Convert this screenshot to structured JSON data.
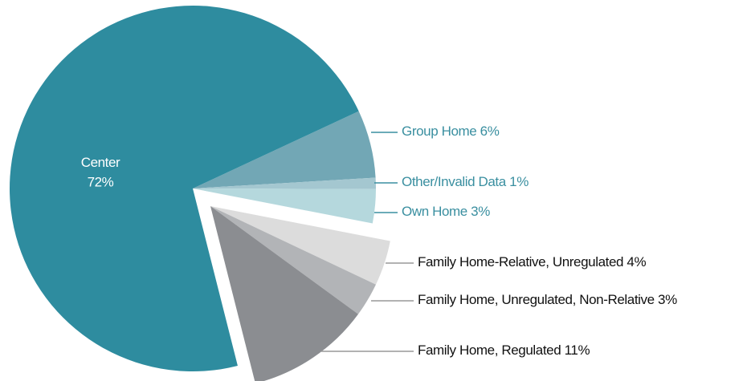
{
  "chart_data": {
    "type": "pie",
    "categories": [
      "Center",
      "Group Home",
      "Other/Invalid Data",
      "Own Home",
      "Family Home-Relative, Unregulated",
      "Family Home, Unregulated, Non-Relative",
      "Family Home, Regulated"
    ],
    "values": [
      72,
      6,
      1,
      3,
      4,
      3,
      11
    ],
    "value_labels": [
      "72%",
      "6%",
      "1%",
      "3%",
      "4%",
      "3%",
      "11%"
    ],
    "colors": [
      "#2e8c9f",
      "#72a7b5",
      "#a4c7d0",
      "#b5d8dd",
      "#dcdcdc",
      "#b2b4b7",
      "#8b8d91"
    ],
    "label_colors": [
      "#ffffff",
      "#3a8fa0",
      "#3a8fa0",
      "#3a8fa0",
      "#111111",
      "#111111",
      "#111111"
    ]
  }
}
